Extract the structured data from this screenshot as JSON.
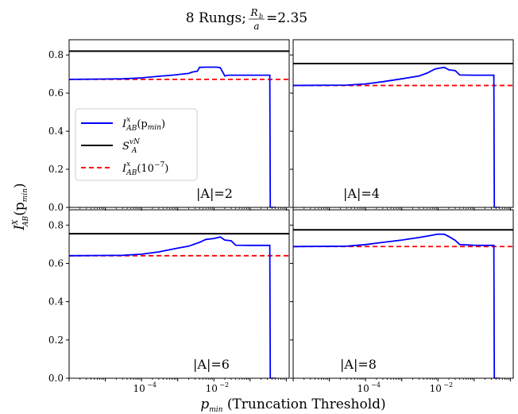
{
  "figure": {
    "title_main": "8 Rungs;",
    "title_frac_num": "R",
    "title_frac_num_sub": "b",
    "title_frac_den": "a",
    "title_value": "=2.35",
    "xlabel_var": "p",
    "xlabel_var_sub": "min",
    "xlabel_text": " (Truncation Threshold)",
    "ylabel_var": "I",
    "ylabel_sup": "X",
    "ylabel_sub": "AB",
    "ylabel_arg": "(p",
    "ylabel_arg_sub": "min",
    "ylabel_close": ")"
  },
  "legend": {
    "placement": "left, top-left panel",
    "entries": [
      {
        "key": "mi",
        "var": "I",
        "sup": "x",
        "sub": "AB",
        "arg": "(p",
        "arg_sub": "min",
        "arg_close": ")",
        "color": "#0000ff",
        "style": "solid"
      },
      {
        "key": "svn",
        "var": "S",
        "sup": "vN",
        "sub": "A",
        "arg": "",
        "arg_sub": "",
        "arg_close": "",
        "color": "#000000",
        "style": "solid"
      },
      {
        "key": "ref",
        "var": "I",
        "sup": "x",
        "sub": "AB",
        "arg": "(10",
        "arg_sub": "",
        "arg_close": ")",
        "arg_sup": "−7",
        "color": "#ff0000",
        "style": "dashed"
      }
    ]
  },
  "chart_data": [
    {
      "type": "line",
      "panel_label": "|A|=2",
      "xscale": "log",
      "xlim": [
        1e-06,
        1.2
      ],
      "ylim": [
        0,
        0.88
      ],
      "yticks": [
        0.0,
        0.2,
        0.4,
        0.6,
        0.8
      ],
      "yticklabels": [
        "0.0",
        "0.2",
        "0.4",
        "0.6",
        "0.8"
      ],
      "svn": 0.82,
      "reference": 0.672,
      "series": {
        "x": [
          1e-06,
          3e-05,
          0.0001,
          0.0003,
          0.0008,
          0.002,
          0.0025,
          0.0035,
          0.004,
          0.006,
          0.008,
          0.012,
          0.015,
          0.02,
          0.025,
          0.04,
          0.1,
          0.3,
          0.35,
          0.36,
          0.5
        ],
        "y": [
          0.672,
          0.675,
          0.68,
          0.688,
          0.695,
          0.703,
          0.71,
          0.715,
          0.735,
          0.736,
          0.736,
          0.736,
          0.733,
          0.69,
          0.694,
          0.694,
          0.694,
          0.694,
          0.694,
          0.0,
          0.0
        ]
      }
    },
    {
      "type": "line",
      "panel_label": "|A|=4",
      "xscale": "log",
      "xlim": [
        1e-06,
        1.2
      ],
      "ylim": [
        0,
        0.88
      ],
      "svn": 0.755,
      "reference": 0.64,
      "series": {
        "x": [
          1e-06,
          3e-05,
          0.0001,
          0.0003,
          0.001,
          0.003,
          0.005,
          0.008,
          0.01,
          0.015,
          0.02,
          0.03,
          0.04,
          0.1,
          0.3,
          0.35,
          0.36,
          0.5
        ],
        "y": [
          0.64,
          0.642,
          0.648,
          0.66,
          0.675,
          0.69,
          0.705,
          0.725,
          0.73,
          0.735,
          0.722,
          0.718,
          0.695,
          0.694,
          0.694,
          0.694,
          0.0,
          0.0
        ]
      }
    },
    {
      "type": "line",
      "panel_label": "|A|=6",
      "xscale": "log",
      "xlim": [
        1e-06,
        1.2
      ],
      "ylim": [
        0,
        0.88
      ],
      "yticks": [
        0.0,
        0.2,
        0.4,
        0.6,
        0.8
      ],
      "yticklabels": [
        "0.0",
        "0.2",
        "0.4",
        "0.6",
        "0.8"
      ],
      "xticklabels": [
        "10",
        "10"
      ],
      "xtickexps": [
        "−4",
        "−2"
      ],
      "xticks": [
        0.0001,
        0.01
      ],
      "svn": 0.755,
      "reference": 0.64,
      "series": {
        "x": [
          1e-06,
          3e-05,
          0.0001,
          0.0003,
          0.001,
          0.002,
          0.004,
          0.006,
          0.01,
          0.015,
          0.02,
          0.03,
          0.04,
          0.1,
          0.3,
          0.35,
          0.36,
          0.5
        ],
        "y": [
          0.64,
          0.642,
          0.648,
          0.66,
          0.68,
          0.69,
          0.71,
          0.725,
          0.73,
          0.738,
          0.722,
          0.718,
          0.695,
          0.694,
          0.694,
          0.694,
          0.0,
          0.0
        ]
      }
    },
    {
      "type": "line",
      "panel_label": "|A|=8",
      "xscale": "log",
      "xlim": [
        1e-06,
        1.2
      ],
      "ylim": [
        0,
        0.88
      ],
      "xticklabels": [
        "10",
        "10"
      ],
      "xtickexps": [
        "−4",
        "−2"
      ],
      "xticks": [
        0.0001,
        0.01
      ],
      "svn": 0.775,
      "reference": 0.688,
      "series": {
        "x": [
          1e-06,
          3e-05,
          0.0001,
          0.0003,
          0.001,
          0.003,
          0.006,
          0.01,
          0.015,
          0.02,
          0.03,
          0.04,
          0.1,
          0.2,
          0.3,
          0.35,
          0.36,
          0.5
        ],
        "y": [
          0.688,
          0.69,
          0.698,
          0.71,
          0.722,
          0.735,
          0.745,
          0.753,
          0.752,
          0.74,
          0.72,
          0.698,
          0.695,
          0.694,
          0.694,
          0.694,
          0.0,
          0.0
        ]
      }
    }
  ]
}
